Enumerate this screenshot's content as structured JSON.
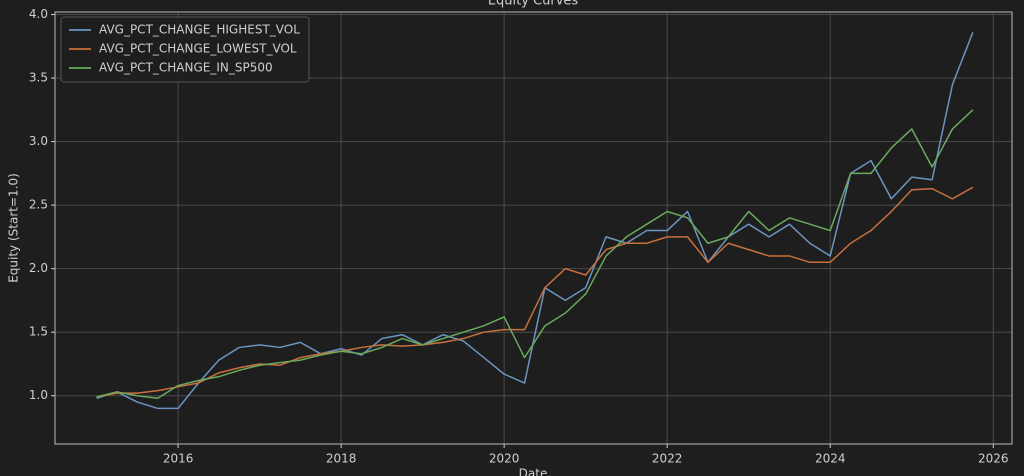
{
  "chart_data": {
    "type": "line",
    "title": "Equity Curves",
    "x_label": "Date",
    "y_label": "Equity (Start=1.0)",
    "x": [
      2015,
      2015.25,
      2015.5,
      2015.75,
      2016,
      2016.25,
      2016.5,
      2016.75,
      2017,
      2017.25,
      2017.5,
      2017.75,
      2018,
      2018.25,
      2018.5,
      2018.75,
      2019,
      2019.25,
      2019.5,
      2019.75,
      2020,
      2020.25,
      2020.5,
      2020.75,
      2021,
      2021.25,
      2021.5,
      2021.75,
      2022,
      2022.25,
      2022.5,
      2022.75,
      2023,
      2023.25,
      2023.5,
      2023.75,
      2024,
      2024.25,
      2024.5,
      2024.75,
      2025,
      2025.25,
      2025.5,
      2025.75
    ],
    "series": [
      {
        "name": "AVG_PCT_CHANGE_HIGHEST_VOL",
        "color": "#6b95c0",
        "values": [
          0.98,
          1.03,
          0.95,
          0.9,
          0.9,
          1.1,
          1.28,
          1.38,
          1.4,
          1.38,
          1.42,
          1.33,
          1.37,
          1.32,
          1.45,
          1.48,
          1.4,
          1.48,
          1.43,
          1.3,
          1.17,
          1.1,
          1.85,
          1.75,
          1.85,
          2.25,
          2.2,
          2.3,
          2.3,
          2.45,
          2.05,
          2.25,
          2.35,
          2.25,
          2.35,
          2.2,
          2.1,
          2.75,
          2.85,
          2.55,
          2.72,
          2.7,
          3.45,
          3.86
        ]
      },
      {
        "name": "AVG_PCT_CHANGE_LOWEST_VOL",
        "color": "#c8703c",
        "values": [
          0.99,
          1.02,
          1.02,
          1.04,
          1.07,
          1.1,
          1.18,
          1.22,
          1.25,
          1.24,
          1.3,
          1.33,
          1.35,
          1.38,
          1.4,
          1.39,
          1.4,
          1.42,
          1.45,
          1.5,
          1.52,
          1.52,
          1.85,
          2.0,
          1.95,
          2.15,
          2.2,
          2.2,
          2.25,
          2.25,
          2.05,
          2.2,
          2.15,
          2.1,
          2.1,
          2.05,
          2.05,
          2.2,
          2.3,
          2.45,
          2.62,
          2.63,
          2.55,
          2.64
        ]
      },
      {
        "name": "AVG_PCT_CHANGE_IN_SP500",
        "color": "#6aaa5e",
        "values": [
          0.99,
          1.03,
          1.0,
          0.98,
          1.08,
          1.12,
          1.15,
          1.2,
          1.24,
          1.26,
          1.28,
          1.32,
          1.35,
          1.33,
          1.38,
          1.45,
          1.4,
          1.45,
          1.5,
          1.55,
          1.62,
          1.3,
          1.55,
          1.65,
          1.8,
          2.1,
          2.25,
          2.35,
          2.45,
          2.4,
          2.2,
          2.25,
          2.45,
          2.3,
          2.4,
          2.35,
          2.3,
          2.75,
          2.75,
          2.95,
          3.1,
          2.8,
          3.1,
          3.25
        ]
      }
    ],
    "xlim": [
      2014.49,
      2026.23
    ],
    "xticks": [
      2016,
      2018,
      2020,
      2022,
      2024,
      2026
    ],
    "ylim": [
      0.62,
      4.02
    ],
    "yticks": [
      {
        "value": 1,
        "label": "1.0"
      },
      {
        "value": 1.5,
        "label": "1.5"
      },
      {
        "value": 2,
        "label": "2.0"
      },
      {
        "value": 2.5,
        "label": "2.5"
      },
      {
        "value": 3,
        "label": "3.0"
      },
      {
        "value": 3.5,
        "label": "3.5"
      },
      {
        "value": 4,
        "label": "4.0"
      }
    ],
    "grid": true,
    "legend": "upper-left"
  }
}
